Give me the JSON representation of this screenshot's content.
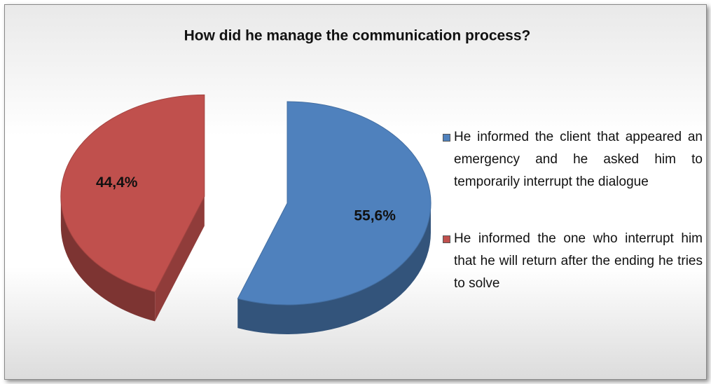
{
  "chart_data": {
    "type": "pie",
    "title": "How did he manage the communication process?",
    "categories": [
      "He informed the client that appeared an emergency and he asked him to temporarily interrupt the dialogue",
      "He informed the one who interrupt him that he will return after the ending he tries to solve"
    ],
    "values": [
      55.6,
      44.4
    ],
    "value_labels": [
      "55,6%",
      "44,4%"
    ],
    "colors": [
      "#4f81bd",
      "#c0504d"
    ]
  }
}
